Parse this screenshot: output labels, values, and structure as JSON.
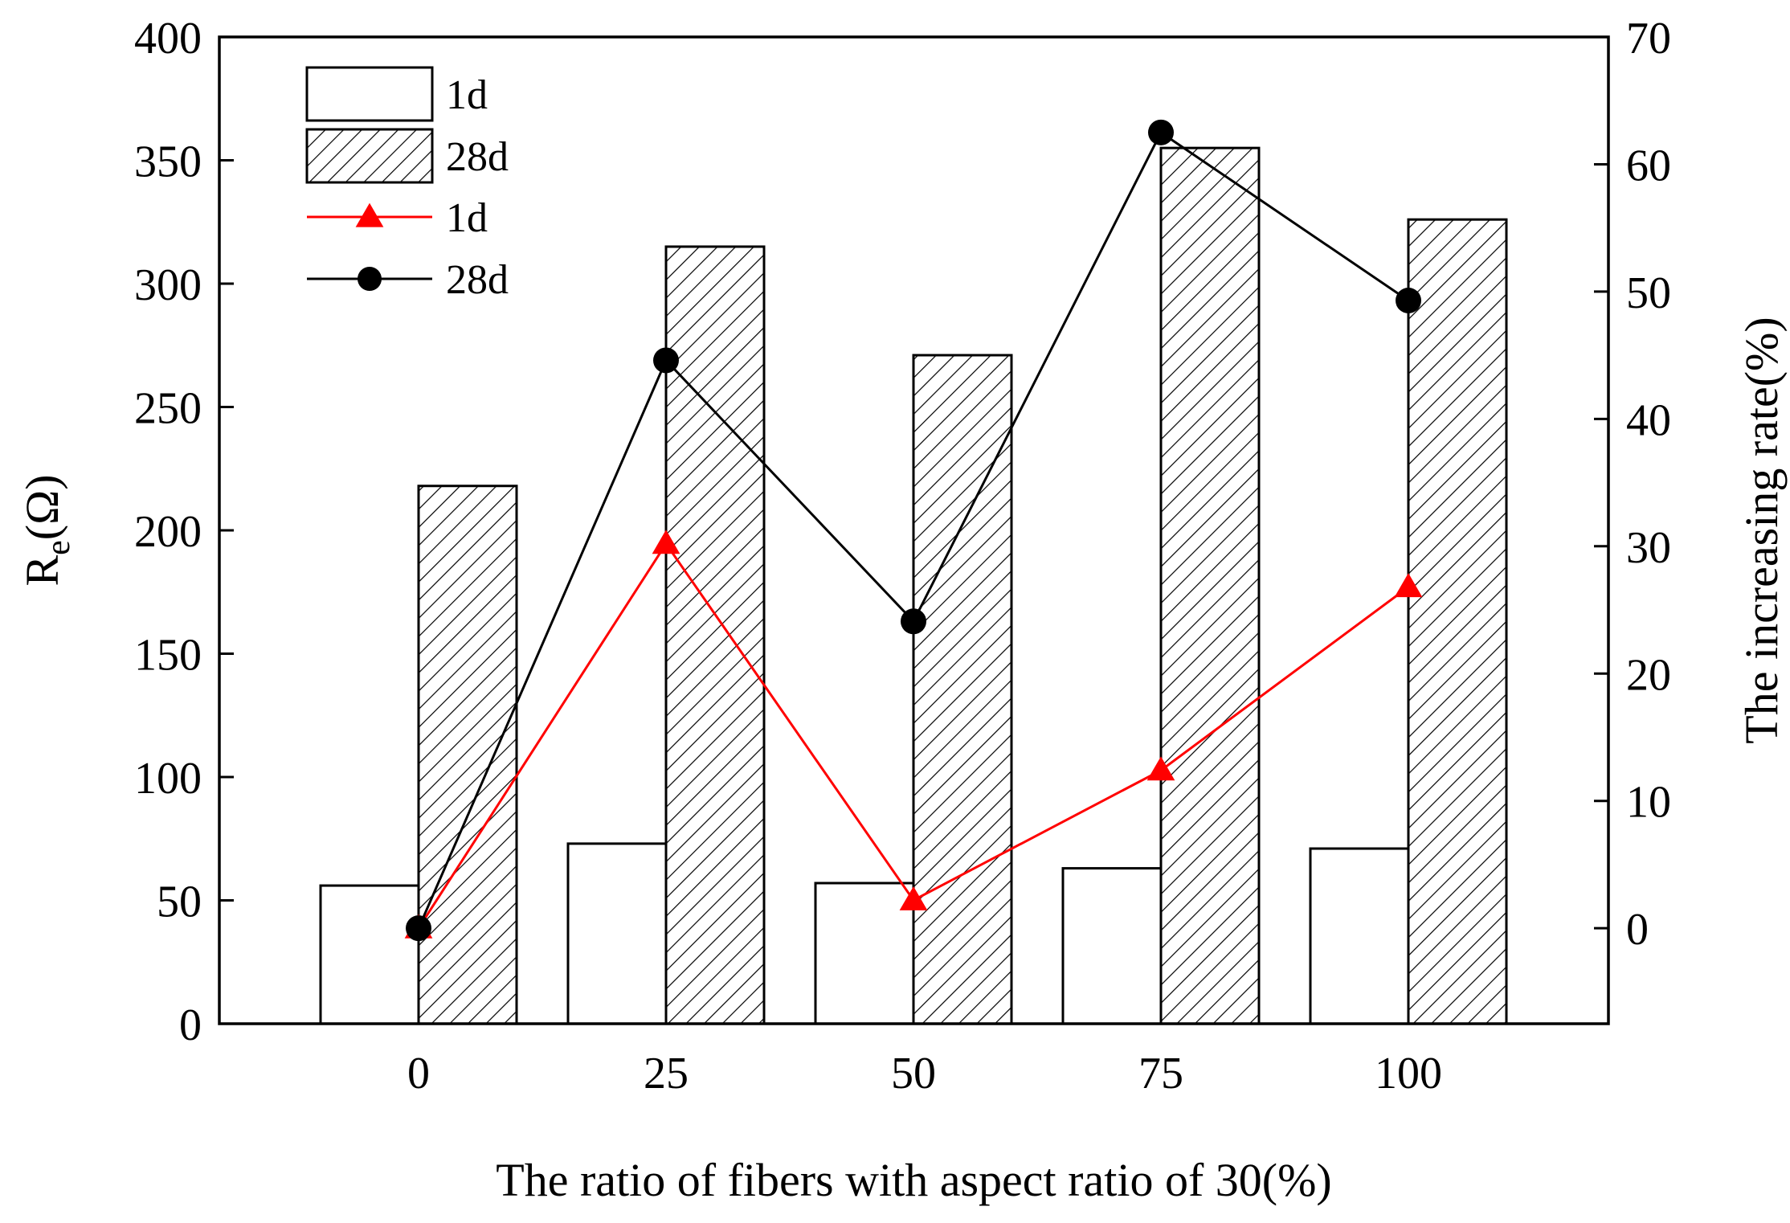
{
  "chart_data": {
    "type": "bar",
    "categories": [
      "0",
      "25",
      "50",
      "75",
      "100"
    ],
    "xlabel": "The ratio of fibers with aspect ratio of 30(%)",
    "ylabel": {
      "main": "R",
      "sub": "e",
      "unit": "(Ω)"
    },
    "y2label": "The increasing rate(%)",
    "ylim": [
      0,
      400
    ],
    "y2lim": [
      -7.5,
      70
    ],
    "yticks": [
      0,
      50,
      100,
      150,
      200,
      250,
      300,
      350,
      400
    ],
    "y2ticks": [
      0,
      10,
      20,
      30,
      40,
      50,
      60,
      70
    ],
    "bar_series": [
      {
        "name": "1d",
        "fill": "white",
        "values": [
          56,
          73,
          57,
          63,
          71
        ]
      },
      {
        "name": "28d",
        "fill": "hatched",
        "values": [
          218,
          315,
          271,
          355,
          326
        ]
      }
    ],
    "line_series": [
      {
        "name": "1d",
        "axis": "right",
        "color": "#ff0000",
        "marker": "triangle",
        "values": [
          0,
          30.2,
          2.2,
          12.4,
          26.8
        ]
      },
      {
        "name": "28d",
        "axis": "right",
        "color": "#000000",
        "marker": "circle",
        "values": [
          0,
          44.6,
          24.1,
          62.5,
          49.3
        ]
      }
    ],
    "grid": false,
    "legend_position": "top-left"
  }
}
